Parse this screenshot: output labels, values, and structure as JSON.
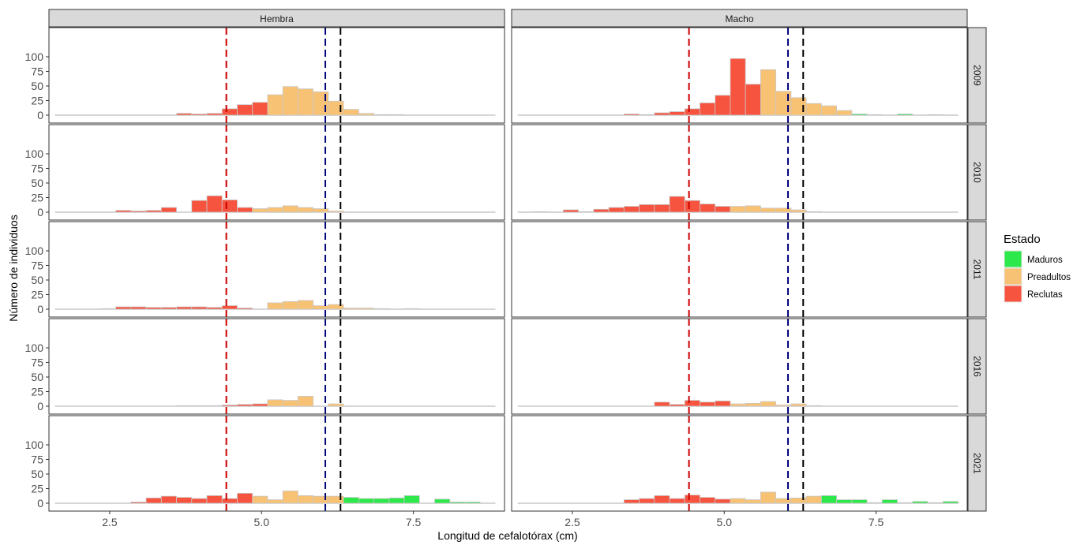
{
  "chart_data": {
    "type": "bar",
    "facet_columns": [
      "Hembra",
      "Macho"
    ],
    "facet_rows": [
      "2009",
      "2010",
      "2011",
      "2016",
      "2021"
    ],
    "xlabel": "Longitud de cefalotórax (cm)",
    "ylabel": "Número de individuos",
    "xlim": [
      1.5,
      9.0
    ],
    "ylim": [
      0,
      100
    ],
    "x_ticks": [
      2.5,
      5.0,
      7.5
    ],
    "x_tick_labels": [
      "2.5",
      "5.0",
      "7.5"
    ],
    "y_ticks": [
      0,
      25,
      50,
      75,
      100
    ],
    "y_tick_labels": [
      "0",
      "25",
      "50",
      "75",
      "100"
    ],
    "bin_width": 0.25,
    "bin_start": 1.6,
    "bin_count": 29,
    "reference_lines": [
      {
        "x": 4.42,
        "color": "#cc0000"
      },
      {
        "x": 6.05,
        "color": "#00007a"
      },
      {
        "x": 6.3,
        "color": "#000000"
      }
    ],
    "colors": {
      "Maduros": "#2ce84a",
      "Preadultos": "#f8c275",
      "Reclutas": "#f75440",
      "outline": "#c8c8c8",
      "strip": "#d9d9d9"
    },
    "legend": {
      "title": "Estado",
      "entries": [
        "Maduros",
        "Preadultos",
        "Reclutas"
      ],
      "placement": "right"
    },
    "panels": [
      {
        "sex": "Hembra",
        "year": "2009",
        "Reclutas": [
          0,
          0,
          0,
          0,
          0,
          0,
          0,
          0,
          3,
          2,
          3,
          11,
          18,
          22,
          0,
          0,
          0,
          0,
          0,
          0,
          0,
          0,
          0,
          0,
          0,
          0,
          0,
          0,
          0
        ],
        "Preadultos": [
          0,
          0,
          0,
          0,
          0,
          0,
          0,
          0,
          0,
          0,
          0,
          0,
          0,
          0,
          35,
          49,
          45,
          40,
          24,
          10,
          3,
          1,
          1,
          0,
          0,
          0,
          0,
          0,
          0
        ],
        "Maduros": [
          0,
          0,
          0,
          0,
          0,
          0,
          0,
          0,
          0,
          0,
          0,
          0,
          0,
          0,
          0,
          0,
          0,
          0,
          0,
          0,
          0,
          0,
          0,
          0,
          0,
          0,
          0,
          0,
          0
        ]
      },
      {
        "sex": "Macho",
        "year": "2009",
        "Reclutas": [
          0,
          0,
          0,
          0,
          0,
          0,
          0,
          2,
          1,
          4,
          6,
          11,
          21,
          34,
          97,
          53,
          0,
          0,
          0,
          0,
          0,
          0,
          0,
          0,
          0,
          0,
          0,
          0,
          0
        ],
        "Preadultos": [
          0,
          0,
          0,
          0,
          0,
          0,
          0,
          0,
          0,
          0,
          0,
          0,
          0,
          0,
          0,
          0,
          78,
          41,
          30,
          20,
          16,
          8,
          0,
          0,
          0,
          0,
          0,
          0,
          0
        ],
        "Maduros": [
          0,
          0,
          0,
          0,
          0,
          0,
          0,
          0,
          0,
          0,
          0,
          0,
          0,
          0,
          0,
          0,
          0,
          0,
          0,
          0,
          0,
          0,
          2,
          1,
          0,
          2,
          0,
          1,
          0
        ]
      },
      {
        "sex": "Hembra",
        "year": "2010",
        "Reclutas": [
          0,
          0,
          0,
          0,
          3,
          2,
          3,
          8,
          0,
          20,
          28,
          21,
          8,
          0,
          0,
          0,
          0,
          0,
          0,
          0,
          0,
          0,
          0,
          0,
          0,
          0,
          0,
          0,
          0
        ],
        "Preadultos": [
          0,
          0,
          0,
          0,
          0,
          0,
          0,
          0,
          0,
          0,
          0,
          0,
          0,
          6,
          8,
          11,
          8,
          6,
          2,
          0,
          0,
          0,
          0,
          0,
          0,
          0,
          0,
          0,
          0
        ],
        "Maduros": [
          0,
          0,
          0,
          0,
          0,
          0,
          0,
          0,
          0,
          0,
          0,
          0,
          0,
          0,
          0,
          0,
          0,
          0,
          0,
          0,
          0,
          0,
          0,
          0,
          0,
          0,
          0,
          0,
          0
        ]
      },
      {
        "sex": "Macho",
        "year": "2010",
        "Reclutas": [
          0,
          1,
          0,
          4,
          1,
          5,
          8,
          10,
          13,
          13,
          27,
          20,
          14,
          10,
          0,
          0,
          0,
          0,
          0,
          0,
          0,
          0,
          0,
          0,
          0,
          0,
          0,
          0,
          0
        ],
        "Preadultos": [
          0,
          0,
          0,
          0,
          0,
          0,
          0,
          0,
          0,
          0,
          0,
          0,
          0,
          0,
          10,
          11,
          7,
          7,
          4,
          1,
          0,
          0,
          0,
          0,
          0,
          0,
          0,
          0,
          0
        ],
        "Maduros": [
          0,
          0,
          0,
          0,
          0,
          0,
          0,
          0,
          0,
          0,
          0,
          0,
          0,
          0,
          0,
          0,
          0,
          0,
          0,
          0,
          0,
          0,
          0,
          0,
          0,
          0,
          0,
          0,
          0
        ]
      },
      {
        "sex": "Hembra",
        "year": "2011",
        "Reclutas": [
          0,
          0,
          0,
          1,
          4,
          4,
          3,
          3,
          4,
          4,
          3,
          6,
          2,
          0,
          0,
          0,
          0,
          0,
          0,
          0,
          0,
          0,
          0,
          0,
          0,
          0,
          0,
          0,
          0
        ],
        "Preadultos": [
          0,
          0,
          0,
          0,
          0,
          0,
          0,
          0,
          0,
          0,
          0,
          0,
          0,
          0,
          11,
          13,
          15,
          6,
          8,
          2,
          2,
          1,
          0,
          1,
          0,
          0,
          0,
          0,
          0
        ],
        "Maduros": [
          0,
          0,
          0,
          0,
          0,
          0,
          0,
          0,
          0,
          0,
          0,
          0,
          0,
          0,
          0,
          0,
          0,
          0,
          0,
          0,
          0,
          0,
          0,
          0,
          0,
          0,
          0,
          0,
          0
        ]
      },
      {
        "sex": "Macho",
        "year": "2011",
        "Reclutas": [
          0,
          0,
          0,
          0,
          0,
          0,
          0,
          0,
          0,
          0,
          0,
          0,
          0,
          0,
          0,
          0,
          0,
          0,
          0,
          0,
          0,
          0,
          0,
          0,
          0,
          0,
          0,
          0,
          0
        ],
        "Preadultos": [
          0,
          0,
          0,
          0,
          0,
          0,
          0,
          0,
          0,
          0,
          0,
          0,
          0,
          0,
          0,
          0,
          0,
          0,
          0,
          0,
          0,
          0,
          0,
          0,
          0,
          0,
          0,
          0,
          0
        ],
        "Maduros": [
          0,
          0,
          0,
          0,
          0,
          0,
          0,
          0,
          0,
          0,
          0,
          0,
          0,
          0,
          0,
          0,
          0,
          0,
          0,
          0,
          0,
          0,
          0,
          0,
          0,
          0,
          0,
          0,
          0
        ]
      },
      {
        "sex": "Hembra",
        "year": "2016",
        "Reclutas": [
          0,
          0,
          0,
          0,
          0,
          0,
          0,
          0,
          1,
          1,
          1,
          2,
          3,
          4,
          0,
          0,
          0,
          0,
          0,
          0,
          0,
          0,
          0,
          0,
          0,
          0,
          0,
          0,
          0
        ],
        "Preadultos": [
          0,
          0,
          0,
          0,
          0,
          0,
          0,
          0,
          0,
          0,
          0,
          0,
          0,
          0,
          11,
          10,
          17,
          0,
          4,
          0,
          0,
          0,
          0,
          0,
          0,
          0,
          0,
          0,
          0
        ],
        "Maduros": [
          0,
          0,
          0,
          0,
          0,
          0,
          0,
          0,
          0,
          0,
          0,
          0,
          0,
          0,
          0,
          0,
          0,
          0,
          0,
          0,
          0,
          0,
          0,
          0,
          0,
          0,
          0,
          0,
          0
        ]
      },
      {
        "sex": "Macho",
        "year": "2016",
        "Reclutas": [
          0,
          0,
          0,
          0,
          0,
          0,
          0,
          0,
          0,
          7,
          3,
          10,
          7,
          9,
          0,
          0,
          0,
          0,
          0,
          0,
          0,
          0,
          0,
          0,
          0,
          0,
          0,
          0,
          0
        ],
        "Preadultos": [
          0,
          0,
          0,
          0,
          0,
          0,
          0,
          0,
          0,
          0,
          0,
          0,
          0,
          0,
          4,
          5,
          8,
          2,
          4,
          1,
          0,
          0,
          0,
          0,
          0,
          0,
          0,
          0,
          0
        ],
        "Maduros": [
          0,
          0,
          0,
          0,
          0,
          0,
          0,
          0,
          0,
          0,
          0,
          0,
          0,
          0,
          0,
          0,
          0,
          0,
          0,
          0,
          0,
          0,
          0,
          0,
          0,
          0,
          0,
          0,
          0
        ]
      },
      {
        "sex": "Hembra",
        "year": "2021",
        "Reclutas": [
          0,
          0,
          0,
          0,
          0,
          2,
          9,
          12,
          10,
          8,
          13,
          8,
          17,
          0,
          0,
          0,
          0,
          0,
          0,
          0,
          0,
          0,
          0,
          0,
          0,
          0,
          0,
          0,
          0
        ],
        "Preadultos": [
          0,
          0,
          0,
          0,
          0,
          0,
          0,
          0,
          0,
          0,
          0,
          0,
          0,
          12,
          6,
          21,
          13,
          12,
          12,
          0,
          0,
          0,
          0,
          0,
          0,
          0,
          0,
          0,
          0
        ],
        "Maduros": [
          0,
          0,
          0,
          0,
          0,
          0,
          0,
          0,
          0,
          0,
          0,
          0,
          0,
          0,
          0,
          0,
          0,
          0,
          0,
          10,
          8,
          8,
          9,
          13,
          0,
          7,
          2,
          2,
          0
        ]
      },
      {
        "sex": "Macho",
        "year": "2021",
        "Reclutas": [
          0,
          0,
          0,
          0,
          0,
          0,
          0,
          6,
          8,
          13,
          8,
          14,
          10,
          7,
          0,
          0,
          0,
          0,
          0,
          0,
          0,
          0,
          0,
          0,
          0,
          0,
          0,
          0,
          0
        ],
        "Preadultos": [
          0,
          0,
          0,
          0,
          0,
          0,
          0,
          0,
          0,
          0,
          0,
          0,
          0,
          0,
          8,
          6,
          19,
          8,
          9,
          12,
          0,
          0,
          0,
          0,
          0,
          0,
          0,
          0,
          0
        ],
        "Maduros": [
          0,
          0,
          0,
          0,
          0,
          0,
          0,
          0,
          0,
          0,
          0,
          0,
          0,
          0,
          0,
          0,
          0,
          0,
          0,
          0,
          13,
          6,
          6,
          1,
          6,
          1,
          3,
          1,
          3
        ]
      }
    ]
  }
}
